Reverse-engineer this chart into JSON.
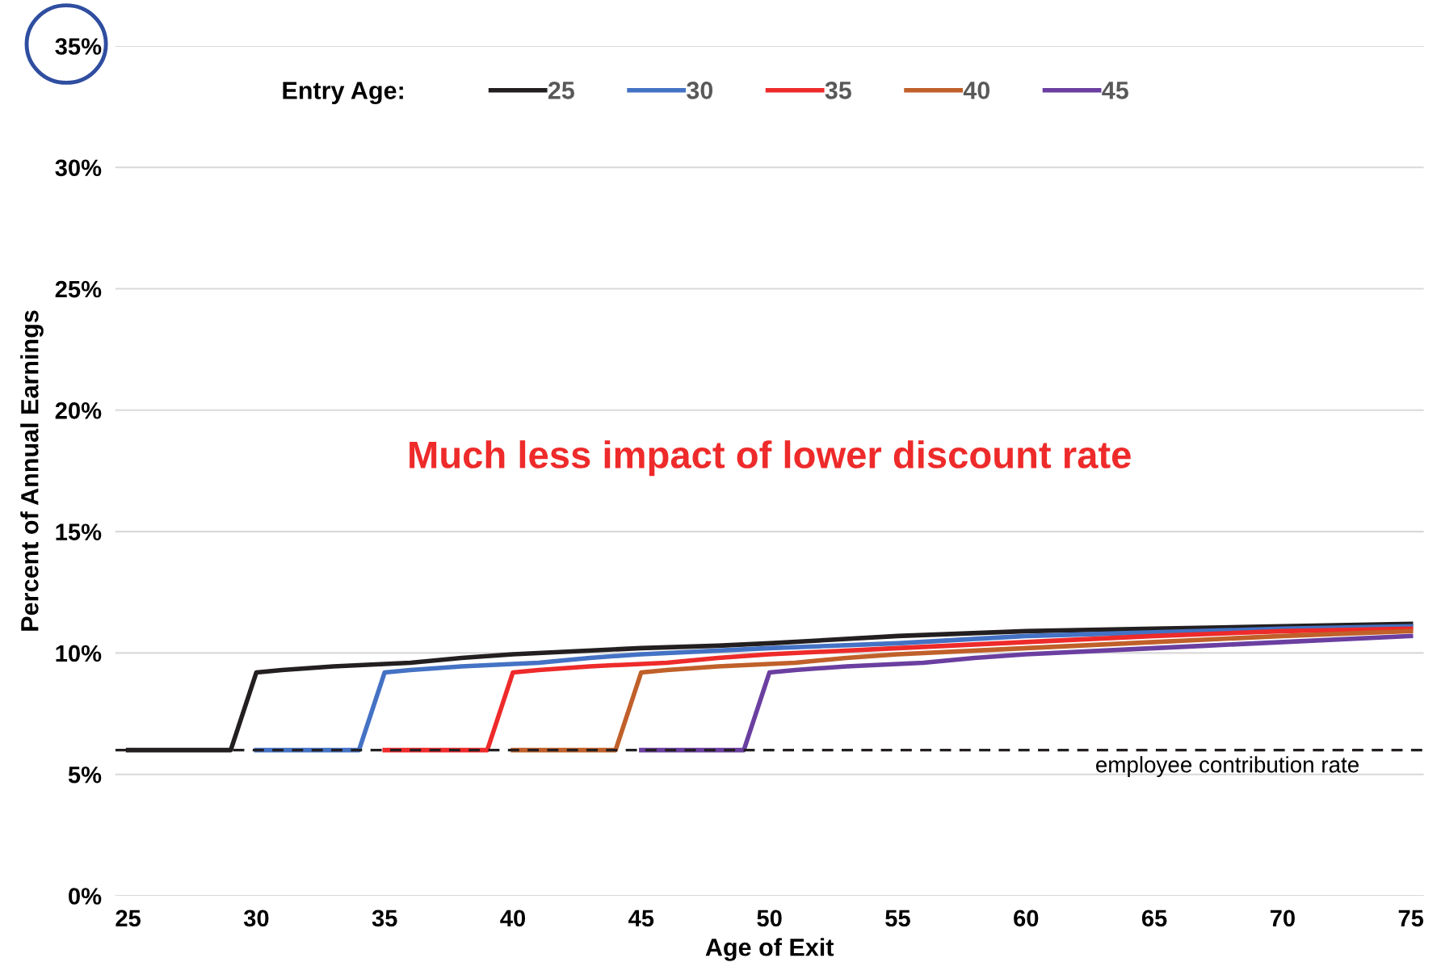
{
  "chart_data": {
    "type": "line",
    "xlabel": "Age of Exit",
    "ylabel": "Percent of Annual Earnings",
    "legend_title": "Entry Age:",
    "legend": "top",
    "xlim": [
      24.5,
      75.5
    ],
    "xticks": [
      25,
      30,
      35,
      40,
      45,
      50,
      55,
      60,
      65,
      70,
      75
    ],
    "ylim": [
      0,
      35
    ],
    "yticks": [
      {
        "value": 0,
        "label": "0%"
      },
      {
        "value": 5,
        "label": "5%"
      },
      {
        "value": 10,
        "label": "10%"
      },
      {
        "value": 15,
        "label": "15%"
      },
      {
        "value": 20,
        "label": "20%"
      },
      {
        "value": 25,
        "label": "25%"
      },
      {
        "value": 30,
        "label": "30%"
      },
      {
        "value": 35,
        "label": "35%"
      }
    ],
    "grid": "y",
    "marker": "none",
    "line_style": "solid",
    "series": [
      {
        "name": "25",
        "color": "#231f20",
        "x": [
          25,
          29,
          30,
          31,
          33,
          36,
          38,
          40,
          45,
          48,
          50,
          55,
          60,
          65,
          70,
          75
        ],
        "values": [
          6,
          6,
          9.2,
          9.3,
          9.45,
          9.6,
          9.8,
          9.95,
          10.2,
          10.3,
          10.4,
          10.7,
          10.9,
          11.0,
          11.1,
          11.2
        ]
      },
      {
        "name": "30",
        "color": "#4472c4",
        "x": [
          30,
          34,
          35,
          36,
          38,
          41,
          43,
          45,
          50,
          55,
          60,
          65,
          70,
          75
        ],
        "values": [
          6,
          6,
          9.2,
          9.3,
          9.45,
          9.6,
          9.8,
          9.95,
          10.2,
          10.4,
          10.7,
          10.85,
          11.0,
          11.1
        ]
      },
      {
        "name": "35",
        "color": "#ee2a2a",
        "x": [
          35,
          39,
          40,
          41,
          43,
          46,
          48,
          50,
          55,
          60,
          65,
          70,
          75
        ],
        "values": [
          6,
          6,
          9.2,
          9.3,
          9.45,
          9.6,
          9.8,
          9.95,
          10.2,
          10.45,
          10.7,
          10.9,
          11.0
        ]
      },
      {
        "name": "40",
        "color": "#c0602a",
        "x": [
          40,
          44,
          45,
          46,
          48,
          51,
          53,
          55,
          60,
          65,
          70,
          75
        ],
        "values": [
          6,
          6,
          9.2,
          9.3,
          9.45,
          9.6,
          9.8,
          9.95,
          10.2,
          10.45,
          10.7,
          10.9
        ]
      },
      {
        "name": "45",
        "color": "#6b3fa0",
        "x": [
          45,
          49,
          50,
          51,
          53,
          56,
          58,
          60,
          65,
          67,
          70,
          75
        ],
        "values": [
          6,
          6,
          9.2,
          9.3,
          9.45,
          9.6,
          9.8,
          9.95,
          10.2,
          10.3,
          10.45,
          10.7
        ]
      }
    ],
    "ref_lines": [
      {
        "axis": "y",
        "value": 6,
        "label": "employee contribution rate",
        "color": "#231f20",
        "line_style": "dashed"
      }
    ],
    "annotations": [
      "Much less impact of lower discount rate"
    ]
  }
}
